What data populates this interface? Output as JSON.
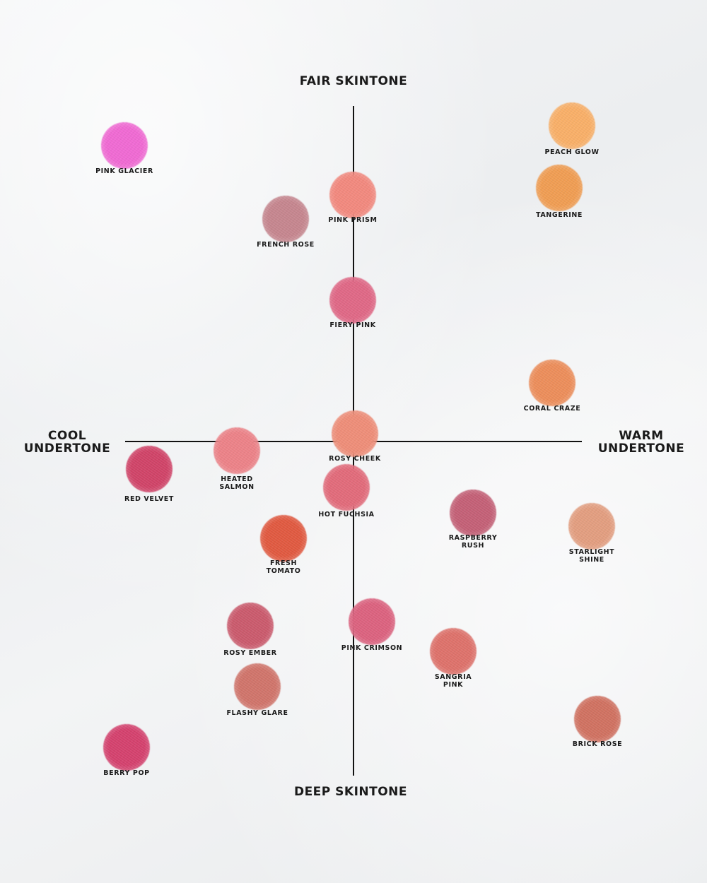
{
  "axes": {
    "top": "FAIR SKINTONE",
    "bottom": "DEEP SKINTONE",
    "left": "COOL\nUNDERTONE",
    "right": "WARM\nUNDERTONE"
  },
  "shades": [
    {
      "name": "PINK GLACIER",
      "color": "#f065d2"
    },
    {
      "name": "PEACH GLOW",
      "color": "#f9ad63"
    },
    {
      "name": "TANGERINE",
      "color": "#f09a4d"
    },
    {
      "name": "PINK PRISM",
      "color": "#f2857a"
    },
    {
      "name": "FRENCH ROSE",
      "color": "#c4828b"
    },
    {
      "name": "FIERY PINK",
      "color": "#df6382"
    },
    {
      "name": "CORAL CRAZE",
      "color": "#ec8a55"
    },
    {
      "name": "ROSY CHEEK",
      "color": "#ee8a74"
    },
    {
      "name": "HEATED\nSALMON",
      "color": "#ec7e84"
    },
    {
      "name": "RED VELVET",
      "color": "#cf3d63"
    },
    {
      "name": "HOT FUCHSIA",
      "color": "#e16676"
    },
    {
      "name": "RASPBERRY\nRUSH",
      "color": "#c25b72"
    },
    {
      "name": "STARLIGHT\nSHINE",
      "color": "#e29b7c"
    },
    {
      "name": "FRESH\nTOMATO",
      "color": "#e0543a"
    },
    {
      "name": "ROSY EMBER",
      "color": "#c95568"
    },
    {
      "name": "PINK CRIMSON",
      "color": "#db5d7b"
    },
    {
      "name": "SANGRIA\nPINK",
      "color": "#dd6d66"
    },
    {
      "name": "FLASHY GLARE",
      "color": "#cf7066"
    },
    {
      "name": "BRICK ROSE",
      "color": "#cf6d5c"
    },
    {
      "name": "BERRY POP",
      "color": "#d33b69"
    }
  ]
}
